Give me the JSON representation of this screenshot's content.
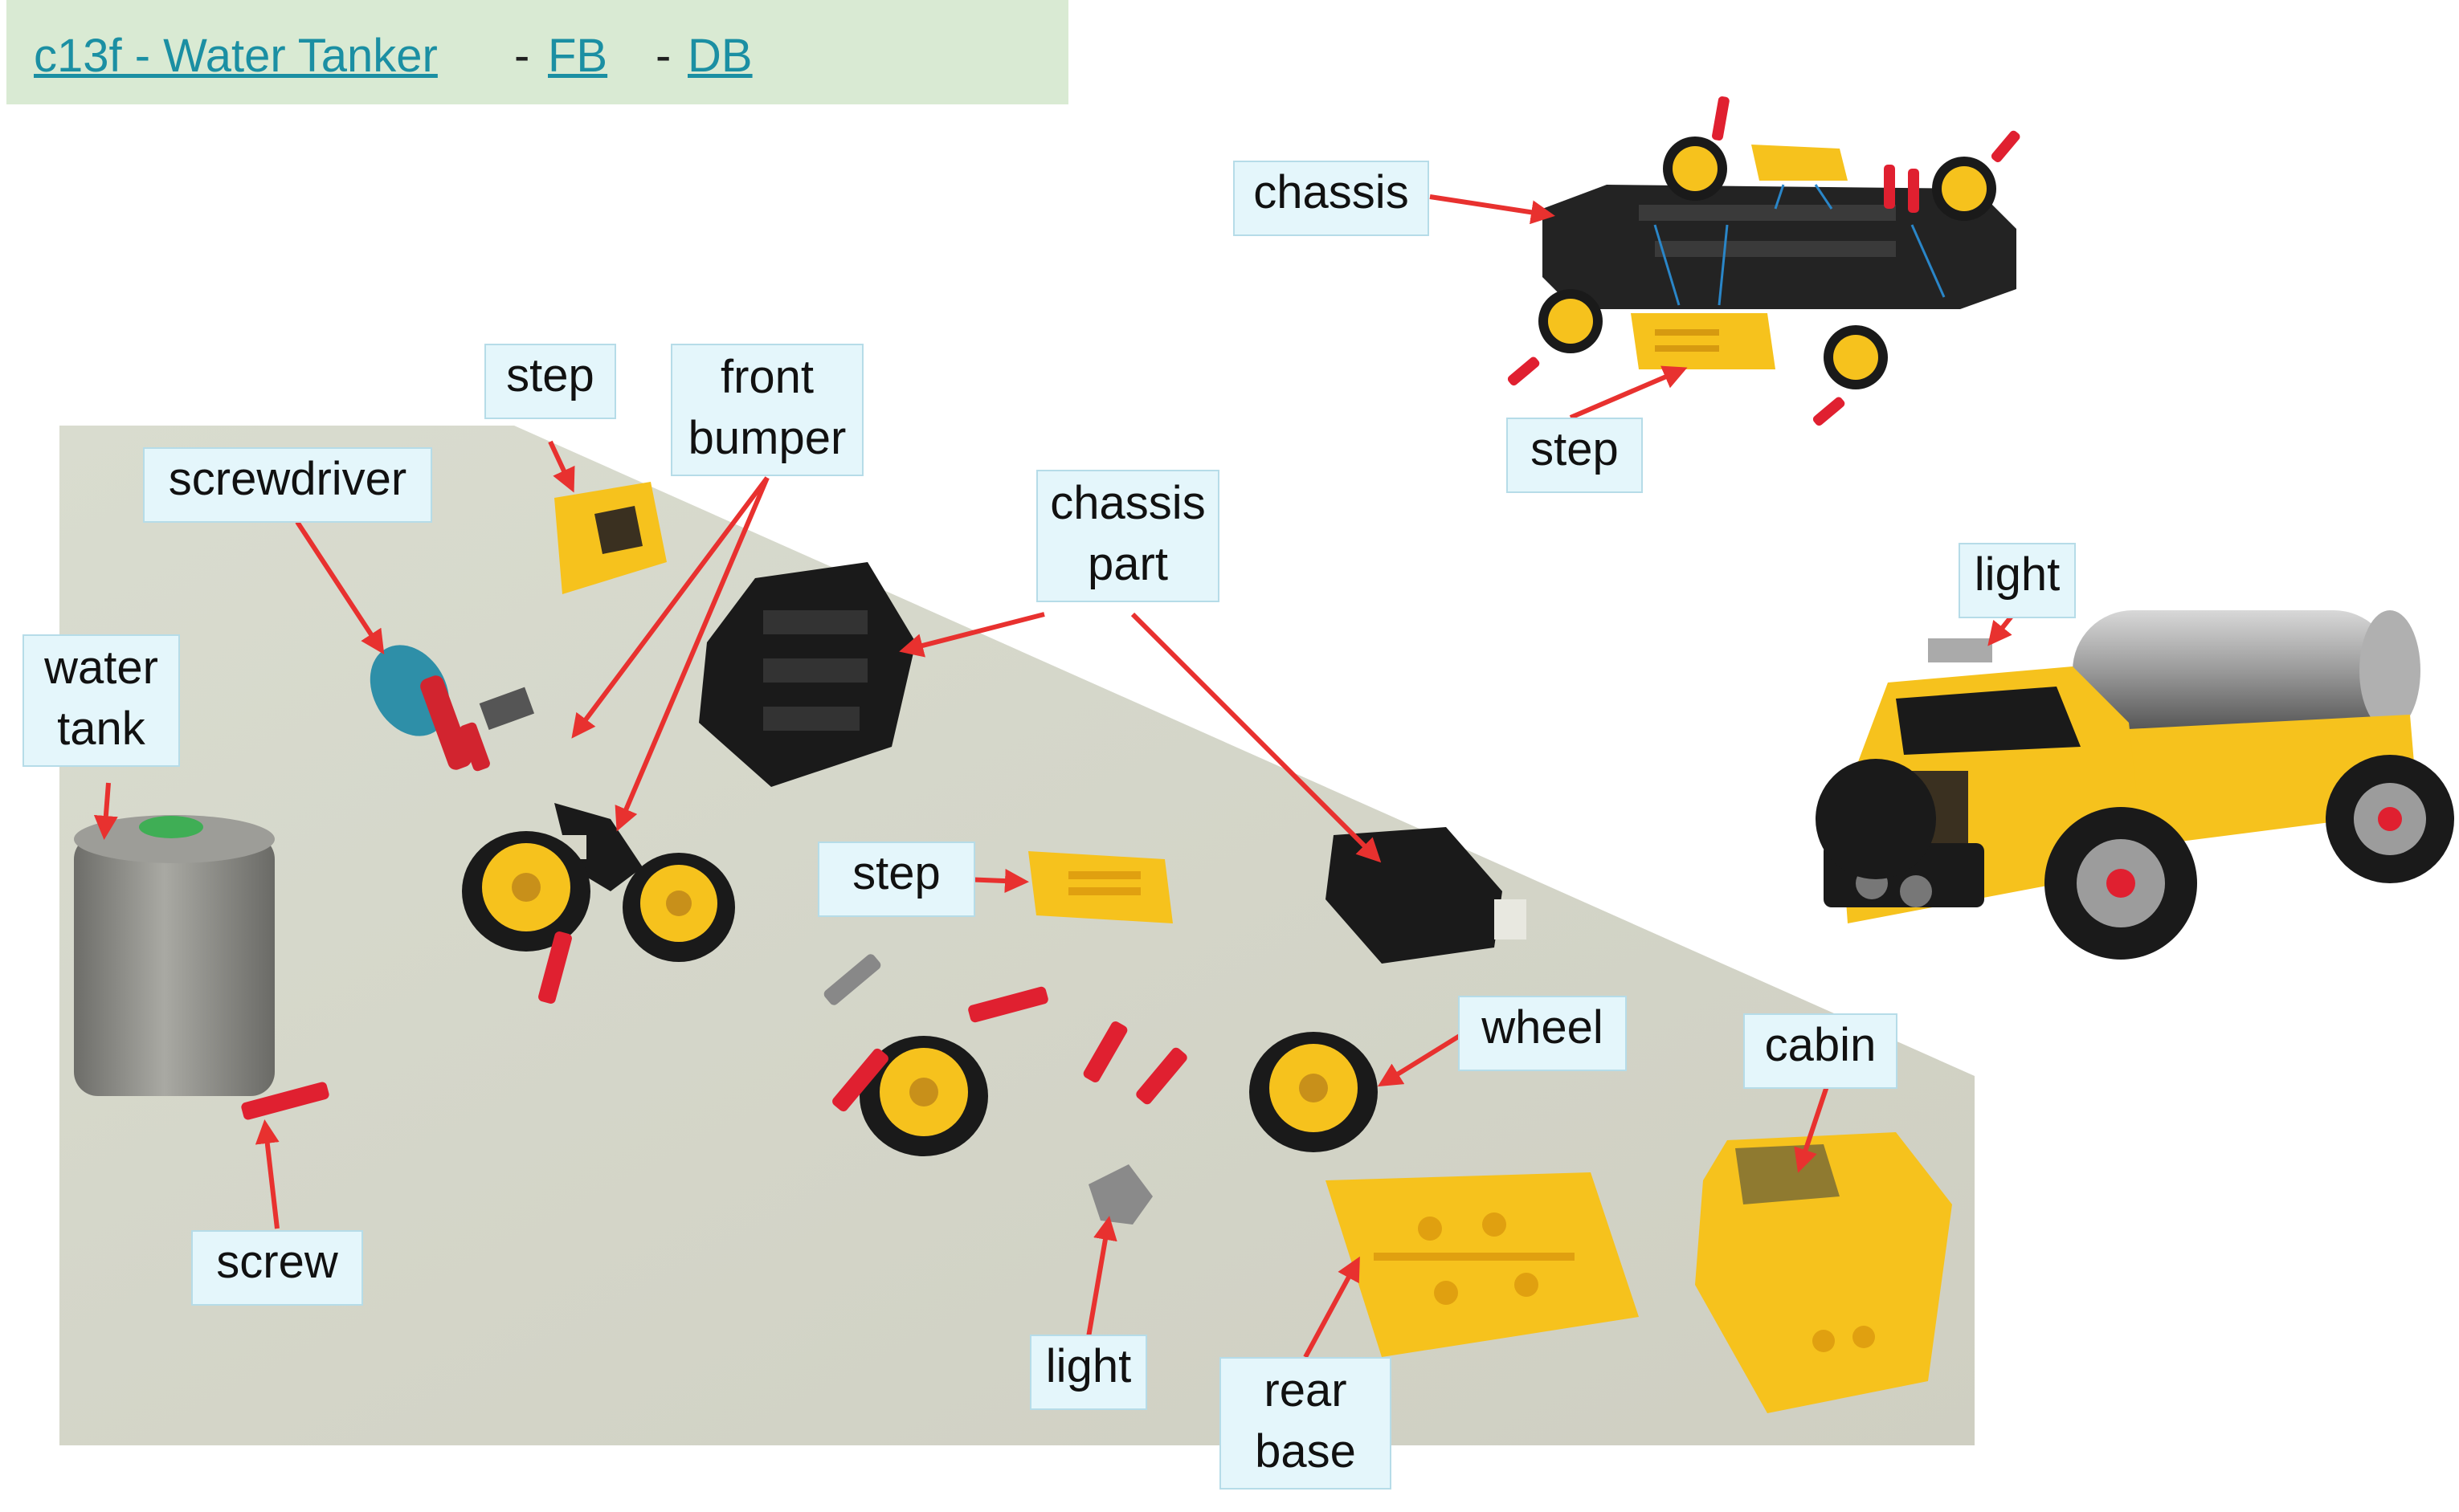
{
  "header": {
    "title_link": "c13f - Water Tanker",
    "sep1": "-",
    "fb_link": "FB",
    "sep2": "-",
    "db_link": "DB"
  },
  "labels": {
    "step_top": "step",
    "front_bumper_1": "front",
    "front_bumper_2": "bumper",
    "screwdriver": "screwdriver",
    "water_tank_1": "water",
    "water_tank_2": "tank",
    "chassis_part_1": "chassis",
    "chassis_part_2": "part",
    "step_mid": "step",
    "wheel": "wheel",
    "cabin": "cabin",
    "screw": "screw",
    "light_bottom": "light",
    "rear_base_1": "rear",
    "rear_base_2": "base",
    "chassis_diagram": "chassis",
    "step_diagram": "step",
    "light_truck": "light"
  },
  "colors": {
    "arrow": "#e8312f",
    "label_bg": "#e4f6fb",
    "header_bg": "#d9ead3",
    "link": "#1b8fa3",
    "table_surface": "#d6d6c8",
    "part_yellow": "#f6c21d",
    "part_black": "#1a1a1a",
    "screw_red": "#e02030",
    "tank_grey": "#8f8f8a"
  }
}
